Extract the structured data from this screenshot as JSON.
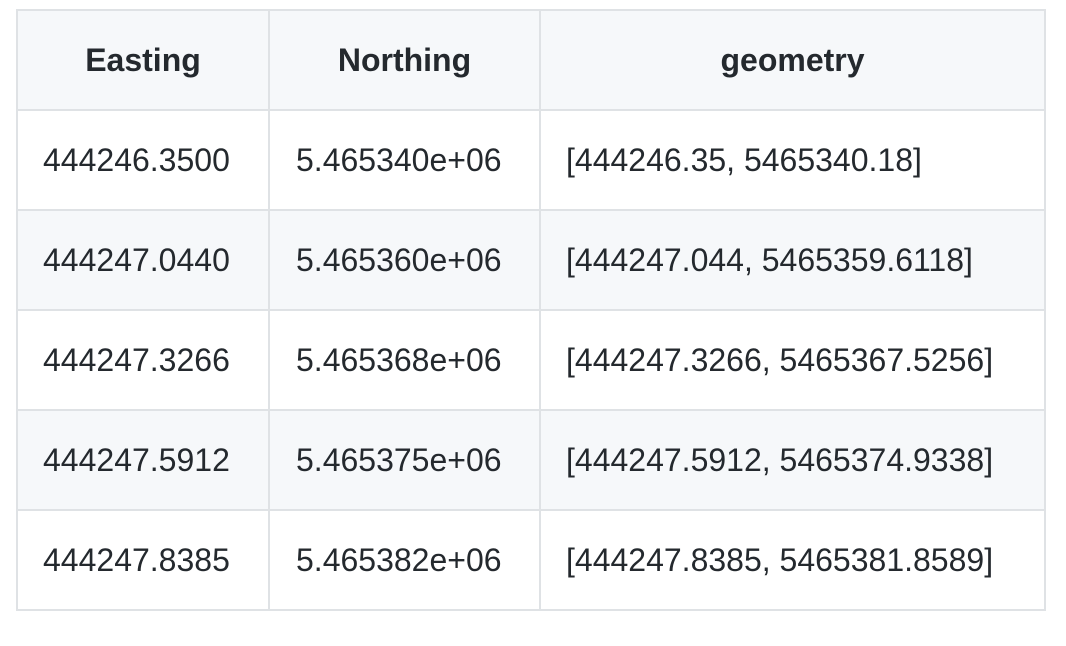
{
  "table": {
    "headers": [
      "Easting",
      "Northing",
      "geometry"
    ],
    "rows": [
      [
        "444246.3500",
        "5.465340e+06",
        "[444246.35, 5465340.18]"
      ],
      [
        "444247.0440",
        "5.465360e+06",
        "[444247.044, 5465359.6118]"
      ],
      [
        "444247.3266",
        "5.465368e+06",
        "[444247.3266, 5465367.5256]"
      ],
      [
        "444247.5912",
        "5.465375e+06",
        "[444247.5912, 5465374.9338]"
      ],
      [
        "444247.8385",
        "5.465382e+06",
        "[444247.8385, 5465381.8589]"
      ]
    ]
  }
}
